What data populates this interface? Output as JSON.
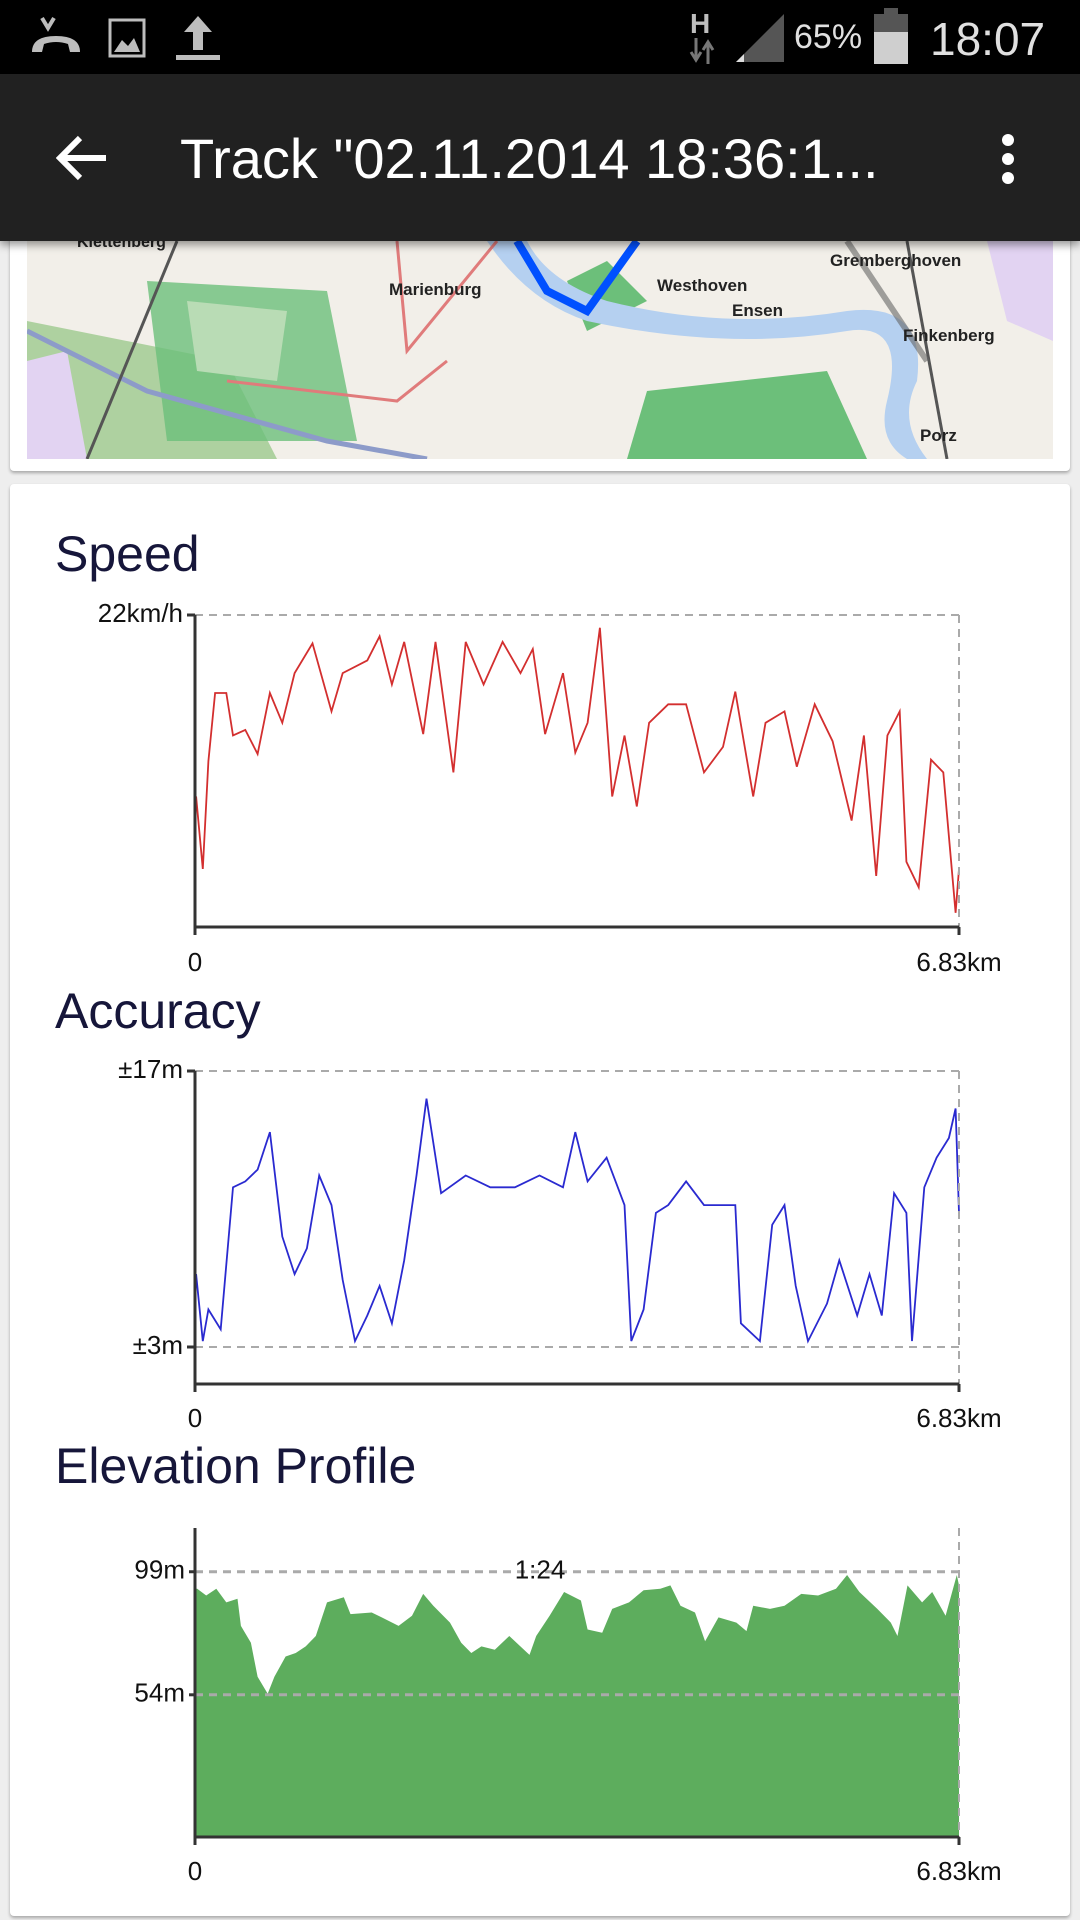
{
  "status_bar": {
    "left_icons": [
      "missed-call-icon",
      "image-icon",
      "upload-icon"
    ],
    "network_type": "H",
    "battery_percent": "65%",
    "battery_level": 0.65,
    "time": "18:07"
  },
  "app_bar": {
    "back_icon": "arrow-left-icon",
    "title": "Track \"02.11.2014 18:36:1...",
    "menu_icon": "more-vert-icon"
  },
  "map": {
    "labels": [
      "Klettenberg",
      "Marienburg",
      "Westhoven",
      "Ensen",
      "Gremberghoven",
      "Finkenberg",
      "Porz"
    ],
    "track_color": "#0050ff"
  },
  "chart_data": [
    {
      "type": "line",
      "title": "Speed",
      "color": "#d32f2f",
      "ylim": [
        0,
        22
      ],
      "xlim": [
        0,
        6.83
      ],
      "y_tick_labels": [
        "22km/h"
      ],
      "x_tick_labels": [
        "0",
        "6.83km"
      ],
      "x": [
        0.01,
        0.07,
        0.12,
        0.18,
        0.28,
        0.34,
        0.45,
        0.56,
        0.67,
        0.78,
        0.89,
        1.05,
        1.22,
        1.32,
        1.54,
        1.65,
        1.76,
        1.87,
        2.04,
        2.15,
        2.31,
        2.42,
        2.58,
        2.75,
        2.91,
        3.02,
        3.13,
        3.29,
        3.4,
        3.51,
        3.62,
        3.73,
        3.84,
        3.95,
        4.06,
        4.23,
        4.39,
        4.55,
        4.72,
        4.83,
        4.99,
        5.1,
        5.27,
        5.38,
        5.54,
        5.7,
        5.87,
        5.98,
        6.09,
        6.19,
        6.3,
        6.36,
        6.47,
        6.58,
        6.69,
        6.8,
        6.83
      ],
      "y": [
        9.2,
        4.1,
        11.7,
        16.5,
        16.5,
        13.5,
        13.9,
        12.2,
        16.5,
        14.4,
        17.9,
        20.0,
        15.2,
        17.9,
        18.8,
        20.5,
        17.1,
        20.1,
        13.6,
        20.1,
        10.9,
        20.1,
        17.1,
        20.1,
        17.9,
        19.6,
        13.6,
        17.9,
        12.3,
        14.4,
        21.1,
        9.2,
        13.5,
        8.5,
        14.4,
        15.7,
        15.7,
        10.9,
        12.7,
        16.6,
        9.2,
        14.4,
        15.2,
        11.3,
        15.7,
        13.1,
        7.5,
        13.5,
        3.6,
        13.5,
        15.2,
        4.6,
        2.8,
        11.8,
        10.9,
        1.0,
        4.1
      ]
    },
    {
      "type": "line",
      "title": "Accuracy",
      "color": "#2a2ad0",
      "ylim": [
        3,
        17
      ],
      "xlim": [
        0,
        6.83
      ],
      "y_tick_labels": [
        "±17m",
        "±3m"
      ],
      "x_tick_labels": [
        "0",
        "6.83km"
      ],
      "x": [
        0.01,
        0.07,
        0.12,
        0.23,
        0.34,
        0.45,
        0.56,
        0.67,
        0.78,
        0.89,
        1.0,
        1.11,
        1.22,
        1.32,
        1.43,
        1.54,
        1.65,
        1.76,
        1.87,
        1.98,
        2.07,
        2.2,
        2.42,
        2.64,
        2.86,
        3.08,
        3.29,
        3.4,
        3.51,
        3.68,
        3.84,
        3.9,
        4.01,
        4.12,
        4.23,
        4.39,
        4.55,
        4.83,
        4.88,
        5.05,
        5.16,
        5.27,
        5.37,
        5.48,
        5.65,
        5.76,
        5.92,
        6.03,
        6.14,
        6.25,
        6.36,
        6.41,
        6.52,
        6.63,
        6.74,
        6.8,
        6.83
      ],
      "y": [
        6.7,
        3.3,
        4.9,
        3.9,
        11.1,
        11.4,
        12.0,
        13.9,
        8.6,
        6.7,
        8.0,
        11.7,
        10.2,
        6.4,
        3.3,
        4.6,
        6.1,
        4.2,
        7.4,
        11.7,
        15.6,
        10.8,
        11.7,
        11.1,
        11.1,
        11.7,
        11.1,
        13.9,
        11.4,
        12.6,
        10.2,
        3.3,
        4.9,
        9.8,
        10.2,
        11.4,
        10.2,
        10.2,
        4.2,
        3.3,
        9.2,
        10.2,
        6.1,
        3.3,
        5.2,
        7.4,
        4.6,
        6.7,
        4.6,
        10.8,
        9.8,
        3.3,
        11.1,
        12.6,
        13.6,
        15.1,
        9.8
      ]
    },
    {
      "type": "area",
      "title": "Elevation Profile",
      "color": "#5dad5d",
      "ylim": [
        2,
        115
      ],
      "xlim": [
        0,
        6.83
      ],
      "y_ticks": [
        99,
        54
      ],
      "y_tick_labels": [
        "99m",
        "54m"
      ],
      "x_tick_labels": [
        "0",
        "6.83km"
      ],
      "annotation": "1:24",
      "x": [
        0.02,
        0.1,
        0.19,
        0.28,
        0.38,
        0.41,
        0.5,
        0.56,
        0.65,
        0.71,
        0.81,
        0.9,
        0.99,
        1.08,
        1.18,
        1.33,
        1.39,
        1.58,
        1.7,
        1.82,
        1.94,
        2.04,
        2.13,
        2.28,
        2.38,
        2.47,
        2.56,
        2.68,
        2.81,
        2.99,
        3.05,
        3.17,
        3.3,
        3.45,
        3.51,
        3.64,
        3.73,
        3.88,
        4.01,
        4.16,
        4.25,
        4.34,
        4.47,
        4.56,
        4.68,
        4.84,
        4.93,
        4.99,
        5.14,
        5.27,
        5.42,
        5.57,
        5.73,
        5.83,
        5.94,
        6.1,
        6.22,
        6.28,
        6.37,
        6.5,
        6.59,
        6.71,
        6.81,
        6.83
      ],
      "y": [
        92.8,
        90.3,
        92.8,
        87.8,
        89.1,
        79.2,
        73.0,
        60.6,
        54.4,
        60.6,
        68.0,
        69.3,
        71.7,
        75.5,
        87.8,
        89.7,
        83.5,
        84.1,
        81.7,
        79.2,
        82.9,
        90.9,
        86.6,
        80.4,
        73.0,
        69.3,
        71.7,
        70.5,
        75.5,
        68.6,
        75.5,
        82.9,
        91.6,
        88.5,
        77.9,
        76.7,
        85.4,
        87.8,
        92.2,
        92.8,
        94.0,
        86.6,
        84.1,
        73.6,
        82.3,
        80.4,
        77.3,
        86.6,
        85.4,
        86.6,
        90.9,
        90.3,
        92.8,
        97.8,
        91.6,
        85.4,
        80.4,
        75.5,
        94.0,
        87.8,
        91.6,
        82.9,
        97.8,
        94.0
      ]
    }
  ]
}
